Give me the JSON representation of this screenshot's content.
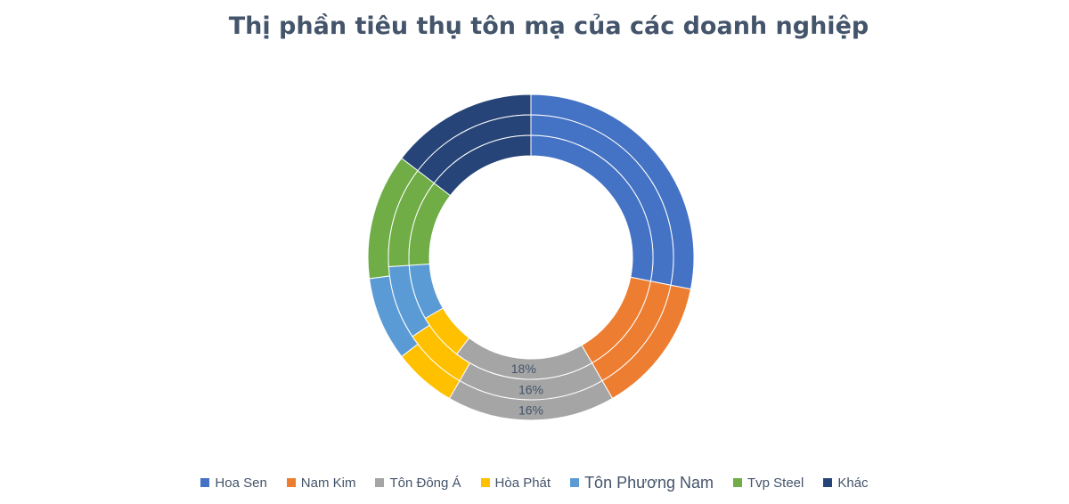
{
  "chart_data": {
    "type": "donut",
    "title": "Thị phần tiêu thụ tôn mạ của các doanh nghiệp",
    "categories": [
      "Hoa Sen",
      "Nam Kim",
      "Tôn Đông Á",
      "Hòa Phát",
      "Tôn Phương Nam",
      "Tvp Steel",
      "Khác"
    ],
    "colors": [
      "#4472c4",
      "#ed7d31",
      "#a5a5a5",
      "#ffc000",
      "#5b9bd5",
      "#70ad47",
      "#264478"
    ],
    "series": [
      {
        "values": [
          27,
          13,
          16,
          6,
          8,
          12,
          14
        ],
        "labels": [
          "",
          "",
          "16%",
          "",
          "",
          "",
          ""
        ]
      },
      {
        "values": [
          27,
          13,
          16,
          7,
          8,
          11,
          14
        ],
        "labels": [
          "",
          "",
          "16%",
          "",
          "",
          "",
          ""
        ]
      },
      {
        "values": [
          27,
          13,
          18,
          6,
          7,
          11,
          14
        ],
        "labels": [
          "",
          "",
          "18%",
          "",
          "",
          "",
          ""
        ]
      }
    ],
    "legend_position": "bottom"
  }
}
